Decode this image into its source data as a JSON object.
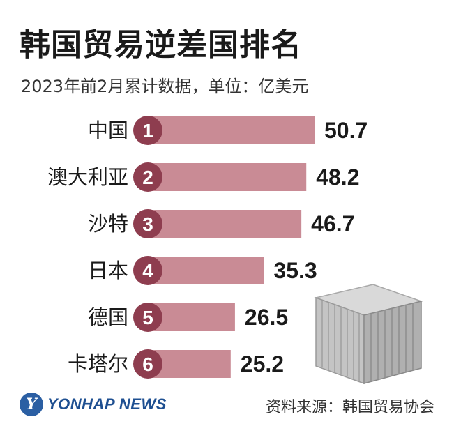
{
  "chart_data": {
    "type": "bar",
    "orientation": "horizontal",
    "title": "韩国贸易逆差国排名",
    "subtitle": "2023年前2月累计数据，单位：亿美元",
    "categories": [
      "中国",
      "澳大利亚",
      "沙特",
      "日本",
      "德国",
      "卡塔尔"
    ],
    "ranks": [
      "1",
      "2",
      "3",
      "4",
      "5",
      "6"
    ],
    "values": [
      50.7,
      48.2,
      46.7,
      35.3,
      26.5,
      25.2
    ],
    "value_labels": [
      "50.7",
      "48.2",
      "46.7",
      "35.3",
      "26.5",
      "25.2"
    ],
    "xlim": [
      0,
      50.7
    ],
    "grid": false,
    "bar_color": "#c98b95",
    "badge_color": "#8e3d4f"
  },
  "footer": {
    "logo_mark": "Y",
    "logo_text": "YONHAP NEWS",
    "source": "资料来源：韩国贸易协会"
  },
  "illustration": {
    "icon": "shipping-container-icon"
  }
}
